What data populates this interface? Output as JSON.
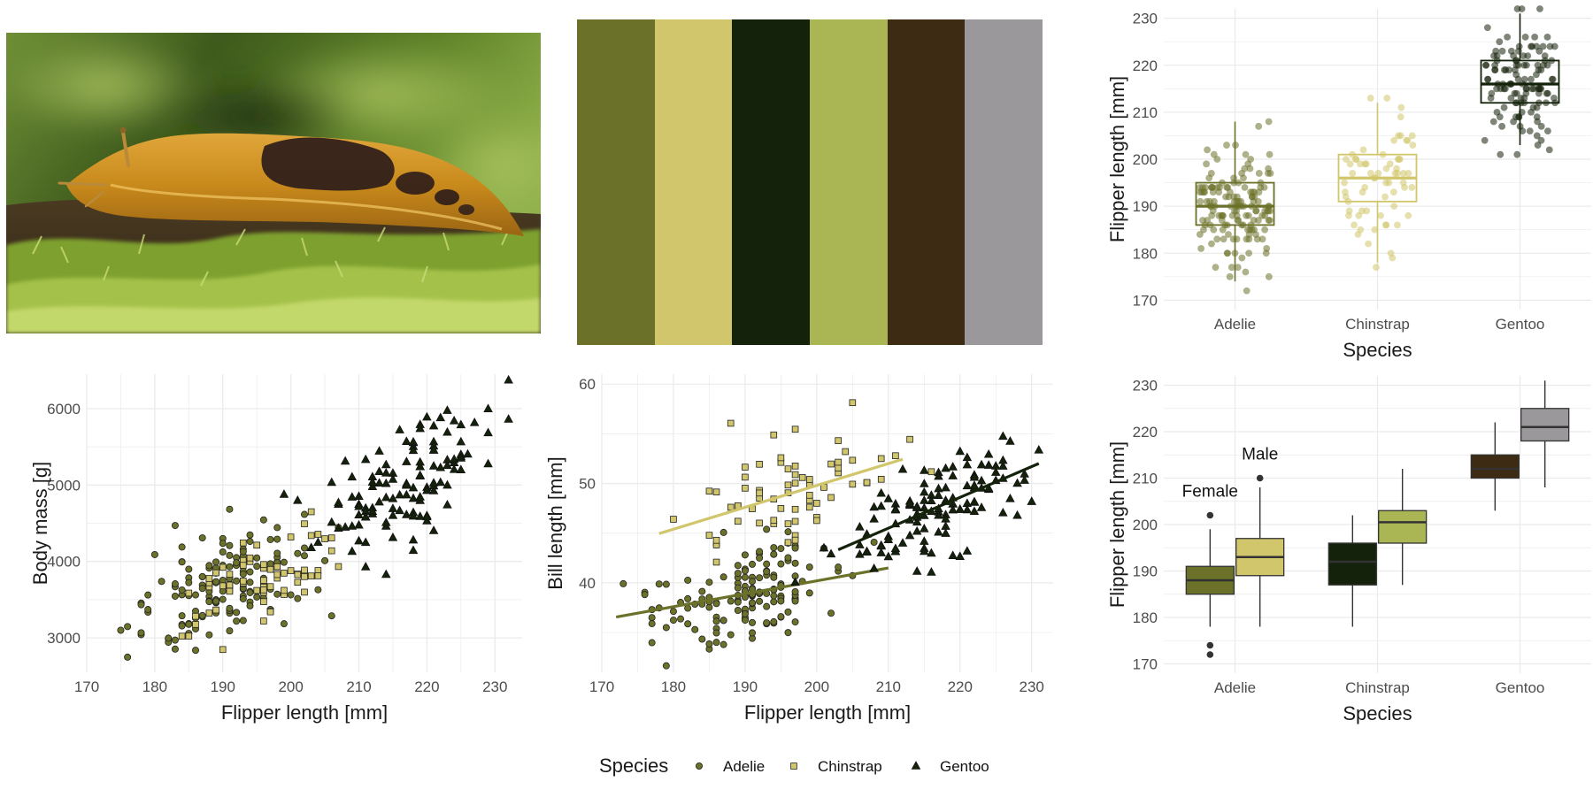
{
  "photo": {
    "subject": "banana slug on mossy log"
  },
  "palette": [
    "#6b7128",
    "#d2c66c",
    "#15220b",
    "#aab653",
    "#3d2c13",
    "#9a989a"
  ],
  "species_colors": {
    "Adelie": "#6b7128",
    "Chinstrap": "#d2c66c",
    "Gentoo": "#15220b"
  },
  "legend": {
    "title": "Species",
    "items": [
      {
        "label": "Adelie",
        "shape": "circle"
      },
      {
        "label": "Chinstrap",
        "shape": "square"
      },
      {
        "label": "Gentoo",
        "shape": "triangle"
      }
    ]
  },
  "chart_data": [
    {
      "id": "box_species",
      "type": "box",
      "xlabel": "Species",
      "ylabel": "Flipper length [mm]",
      "categories": [
        "Adelie",
        "Chinstrap",
        "Gentoo"
      ],
      "ylim": [
        168,
        232
      ],
      "yticks": [
        170,
        180,
        190,
        200,
        210,
        220,
        230
      ],
      "grid": true,
      "jitter_points": true,
      "boxes": [
        {
          "name": "Adelie",
          "min": 174,
          "q1": 186,
          "median": 190,
          "q3": 195,
          "max": 208
        },
        {
          "name": "Chinstrap",
          "min": 178,
          "q1": 191,
          "median": 196,
          "q3": 201,
          "max": 212
        },
        {
          "name": "Gentoo",
          "min": 203,
          "q1": 212,
          "median": 216,
          "q3": 221,
          "max": 231
        }
      ]
    },
    {
      "id": "scatter_mass",
      "type": "scatter",
      "xlabel": "Flipper length [mm]",
      "ylabel": "Body mass [g]",
      "xlim": [
        170,
        234
      ],
      "ylim": [
        2550,
        6450
      ],
      "xticks": [
        170,
        180,
        190,
        200,
        210,
        220,
        230
      ],
      "yticks": [
        3000,
        4000,
        5000,
        6000
      ],
      "grid": true,
      "series": [
        {
          "name": "Adelie",
          "n": 151,
          "x_mean": 190,
          "x_sd": 6.5,
          "slope": 32.8,
          "intercept": -2535,
          "resid_sd": 380
        },
        {
          "name": "Chinstrap",
          "n": 68,
          "x_mean": 196,
          "x_sd": 7,
          "slope": 34.6,
          "intercept": -3037,
          "resid_sd": 300
        },
        {
          "name": "Gentoo",
          "n": 123,
          "x_mean": 217,
          "x_sd": 6.5,
          "slope": 54.6,
          "intercept": -6788,
          "resid_sd": 380
        }
      ]
    },
    {
      "id": "scatter_bill",
      "type": "scatter",
      "xlabel": "Flipper length [mm]",
      "ylabel": "Bill length [mm]",
      "xlim": [
        170,
        233
      ],
      "ylim": [
        31,
        61
      ],
      "xticks": [
        170,
        180,
        190,
        200,
        210,
        220,
        230
      ],
      "yticks": [
        40,
        50,
        60
      ],
      "grid": true,
      "trend_lines": true,
      "series": [
        {
          "name": "Adelie",
          "n": 151,
          "x_mean": 190,
          "x_sd": 6.5,
          "slope": 0.13,
          "intercept": 14.2,
          "resid_sd": 2.5,
          "fit_range": [
            172,
            210
          ]
        },
        {
          "name": "Chinstrap",
          "n": 68,
          "x_mean": 196,
          "x_sd": 7,
          "slope": 0.22,
          "intercept": 5.8,
          "resid_sd": 2.8,
          "fit_range": [
            178,
            212
          ]
        },
        {
          "name": "Gentoo",
          "n": 123,
          "x_mean": 217,
          "x_sd": 6.5,
          "slope": 0.31,
          "intercept": -19.6,
          "resid_sd": 2.3,
          "fit_range": [
            203,
            231
          ]
        }
      ]
    },
    {
      "id": "box_sex",
      "type": "box",
      "xlabel": "Species",
      "ylabel": "Flipper length [mm]",
      "categories": [
        "Adelie",
        "Chinstrap",
        "Gentoo"
      ],
      "ylim": [
        168,
        232
      ],
      "yticks": [
        170,
        180,
        190,
        200,
        210,
        220,
        230
      ],
      "grid": true,
      "annotations": [
        {
          "text": "Female",
          "x": "Adelie",
          "offset": -0.17,
          "y": 206
        },
        {
          "text": "Male",
          "x": "Adelie",
          "offset": 0.17,
          "y": 214
        }
      ],
      "boxes": [
        {
          "category": "Adelie",
          "sex": "Female",
          "color": "#6b7128",
          "min": 178,
          "q1": 185,
          "median": 188,
          "q3": 191,
          "max": 199,
          "outliers": [
            202,
            174,
            172
          ]
        },
        {
          "category": "Adelie",
          "sex": "Male",
          "color": "#d2c66c",
          "min": 178,
          "q1": 189,
          "median": 193,
          "q3": 197,
          "max": 208,
          "outliers": [
            210
          ]
        },
        {
          "category": "Chinstrap",
          "sex": "Female",
          "color": "#15220b",
          "min": 178,
          "q1": 187,
          "median": 192,
          "q3": 196,
          "max": 202,
          "outliers": []
        },
        {
          "category": "Chinstrap",
          "sex": "Male",
          "color": "#aab653",
          "min": 187,
          "q1": 196,
          "median": 200.5,
          "q3": 203,
          "max": 212,
          "outliers": []
        },
        {
          "category": "Gentoo",
          "sex": "Female",
          "color": "#3d2c13",
          "min": 203,
          "q1": 210,
          "median": 212,
          "q3": 215,
          "max": 222,
          "outliers": []
        },
        {
          "category": "Gentoo",
          "sex": "Male",
          "color": "#9a989a",
          "min": 208,
          "q1": 218,
          "median": 221,
          "q3": 225,
          "max": 231,
          "outliers": []
        }
      ]
    }
  ]
}
